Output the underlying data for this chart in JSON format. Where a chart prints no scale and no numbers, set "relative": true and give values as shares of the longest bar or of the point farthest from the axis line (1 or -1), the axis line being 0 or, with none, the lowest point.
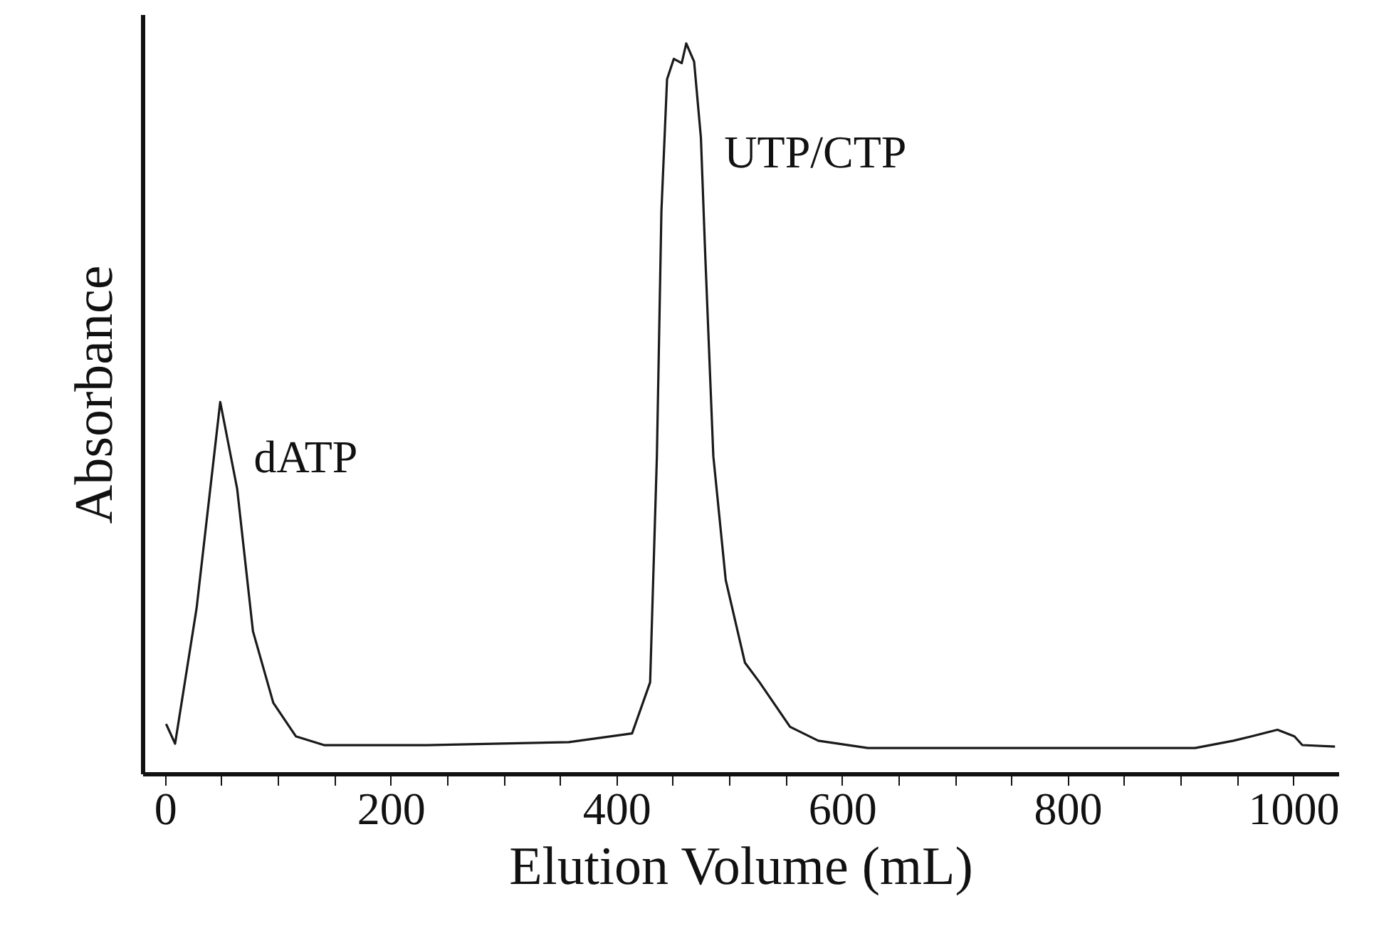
{
  "chart_data": {
    "type": "line",
    "relative": true,
    "xlabel": "Elution Volume (mL)",
    "ylabel": "Absorbance",
    "color": "#1a1a1a",
    "marker": "none",
    "line_style": "solid",
    "grid": false,
    "x": [
      1,
      9,
      28,
      49,
      64,
      78,
      96,
      116,
      141,
      232,
      358,
      414,
      430,
      436,
      440,
      445,
      451,
      458,
      462,
      469,
      475,
      479,
      486,
      497,
      514,
      527,
      554,
      579,
      623,
      808,
      913,
      947,
      963,
      986,
      1001,
      1008,
      1037
    ],
    "values": [
      0.068,
      0.041,
      0.226,
      0.509,
      0.39,
      0.195,
      0.097,
      0.051,
      0.039,
      0.039,
      0.043,
      0.055,
      0.125,
      0.435,
      0.77,
      0.951,
      0.979,
      0.973,
      1.0,
      0.975,
      0.871,
      0.704,
      0.435,
      0.265,
      0.152,
      0.125,
      0.064,
      0.045,
      0.035,
      0.035,
      0.035,
      0.045,
      0.051,
      0.06,
      0.051,
      0.039,
      0.037
    ],
    "xlim": [
      -20,
      1040
    ],
    "xticks": [
      0,
      {
        "value": 50,
        "label": null
      },
      {
        "value": 100,
        "label": null
      },
      {
        "value": 150,
        "label": null
      },
      200,
      {
        "value": 250,
        "label": null
      },
      {
        "value": 300,
        "label": null
      },
      {
        "value": 350,
        "label": null
      },
      400,
      {
        "value": 450,
        "label": null
      },
      {
        "value": 500,
        "label": null
      },
      {
        "value": 550,
        "label": null
      },
      600,
      {
        "value": 650,
        "label": null
      },
      {
        "value": 700,
        "label": null
      },
      {
        "value": 750,
        "label": null
      },
      800,
      {
        "value": 850,
        "label": null
      },
      {
        "value": 900,
        "label": null
      },
      {
        "value": 950,
        "label": null
      },
      1000
    ],
    "annotations": [
      "dATP",
      "UTP/CTP"
    ]
  }
}
